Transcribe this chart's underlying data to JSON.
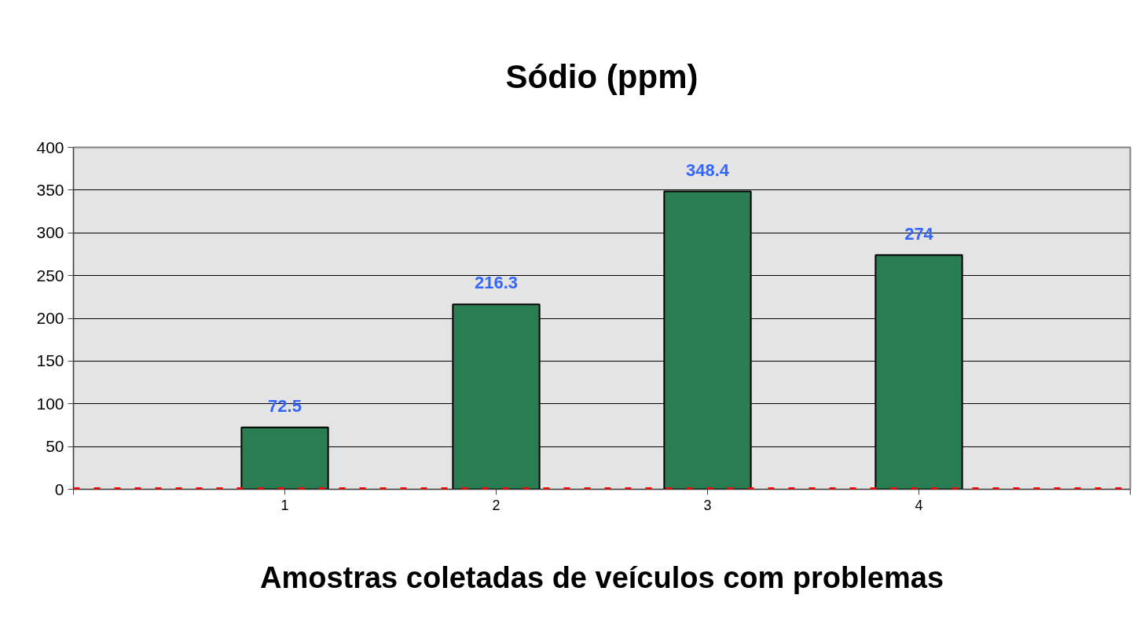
{
  "chart_data": {
    "type": "bar",
    "title": "Sódio (ppm)",
    "xlabel": "Amostras coletadas de veículos com problemas",
    "x": [
      1,
      2,
      3,
      4
    ],
    "values": [
      72.5,
      216.3,
      348.4,
      274
    ],
    "color": "#2a7d52",
    "xlim": [
      0,
      5
    ],
    "xticks": [
      {
        "value": 0,
        "label": null
      },
      1,
      2,
      3,
      4,
      {
        "value": 5,
        "label": null
      }
    ],
    "ylim": [
      0,
      400
    ],
    "yticks": [
      0,
      50,
      100,
      150,
      200,
      250,
      300,
      350,
      400
    ],
    "grid": "y",
    "data_labels": true,
    "ref_lines": [
      {
        "axis": "y",
        "value": 0,
        "color": "#ff0000",
        "line_style": "dotted"
      }
    ]
  }
}
